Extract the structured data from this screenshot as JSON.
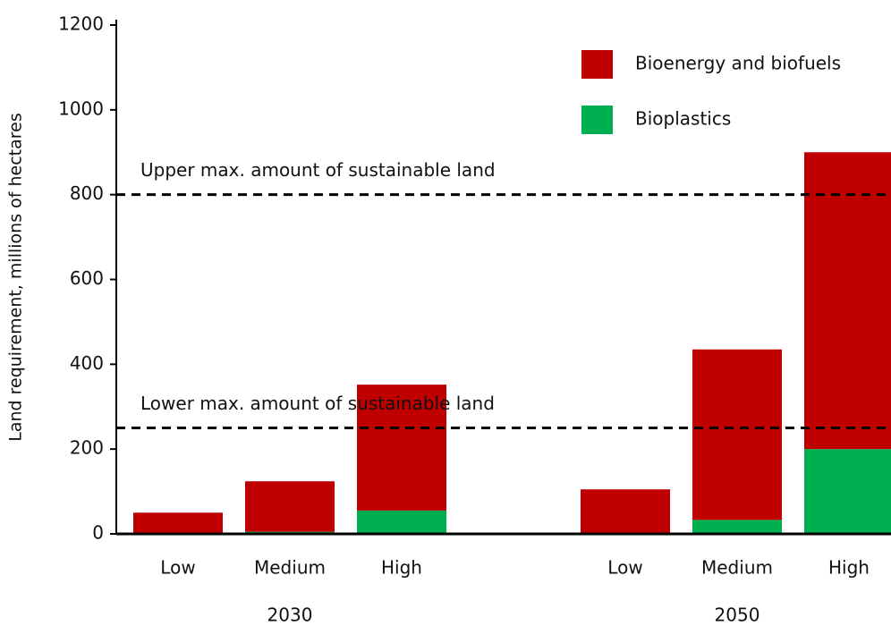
{
  "chart_data": {
    "type": "stacked_bar",
    "y_label": "Land requirement,  millions of hectares",
    "groups": [
      {
        "label": "2030",
        "categories": [
          "Low",
          "Medium",
          "High"
        ]
      },
      {
        "label": "2050",
        "categories": [
          "Low",
          "Medium",
          "High"
        ]
      }
    ],
    "series": [
      {
        "name": "Bioplastics",
        "color": "#00b050",
        "values": [
          0,
          5,
          55,
          3,
          33,
          200
        ]
      },
      {
        "name": "Bioenergy and biofuels",
        "color": "#c00000",
        "values": [
          50,
          119,
          297,
          102,
          402,
          700
        ]
      }
    ],
    "reference_lines": [
      {
        "value": 800,
        "label": "Upper max. amount  of sustainable land"
      },
      {
        "value": 250,
        "label": "Lower max. amount  of sustainable land"
      }
    ],
    "ylim": [
      0,
      1200
    ],
    "yticks": [
      0,
      200,
      400,
      600,
      800,
      1000,
      1200
    ]
  }
}
